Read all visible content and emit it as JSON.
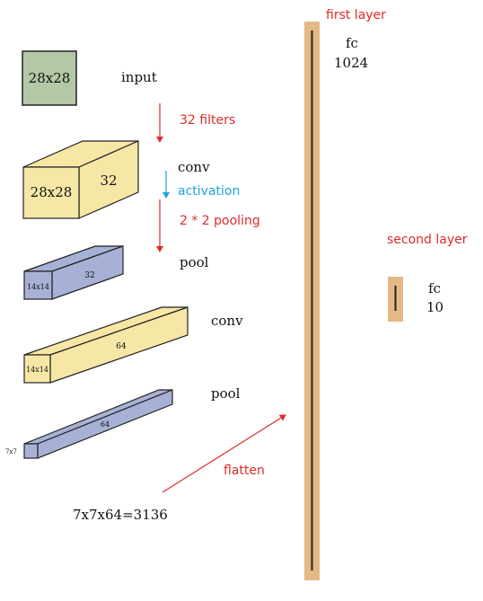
{
  "colors": {
    "input_fill": "#b4c8a5",
    "yellow_fill": "#f6e7a6",
    "blue_fill": "#a6b1d5",
    "fc_bar": "#e4b986",
    "annotation_red": "#e02a2a",
    "annotation_blue": "#1fa2e0",
    "outline": "#222222"
  },
  "blocks": {
    "input": {
      "front_label": "28x28",
      "side_label": "input"
    },
    "conv1": {
      "front_label": "28x28",
      "depth_label": "32",
      "side_label": "conv"
    },
    "pool1": {
      "front_label": "14x14",
      "depth_label": "32",
      "side_label": "pool"
    },
    "conv2": {
      "front_label": "14x14",
      "depth_label": "64",
      "side_label": "conv"
    },
    "pool2": {
      "front_label": "7x7",
      "depth_label": "64",
      "side_label": "pool"
    }
  },
  "annotations": {
    "filters": "32 filters",
    "activation": "activation",
    "pooling": "2 * 2 pooling",
    "flatten": "flatten",
    "flatten_size": "7x7x64=3136"
  },
  "layers": {
    "first": {
      "title": "first layer",
      "type": "fc",
      "units": "1024"
    },
    "second": {
      "title": "second layer",
      "type": "fc",
      "units": "10"
    }
  }
}
